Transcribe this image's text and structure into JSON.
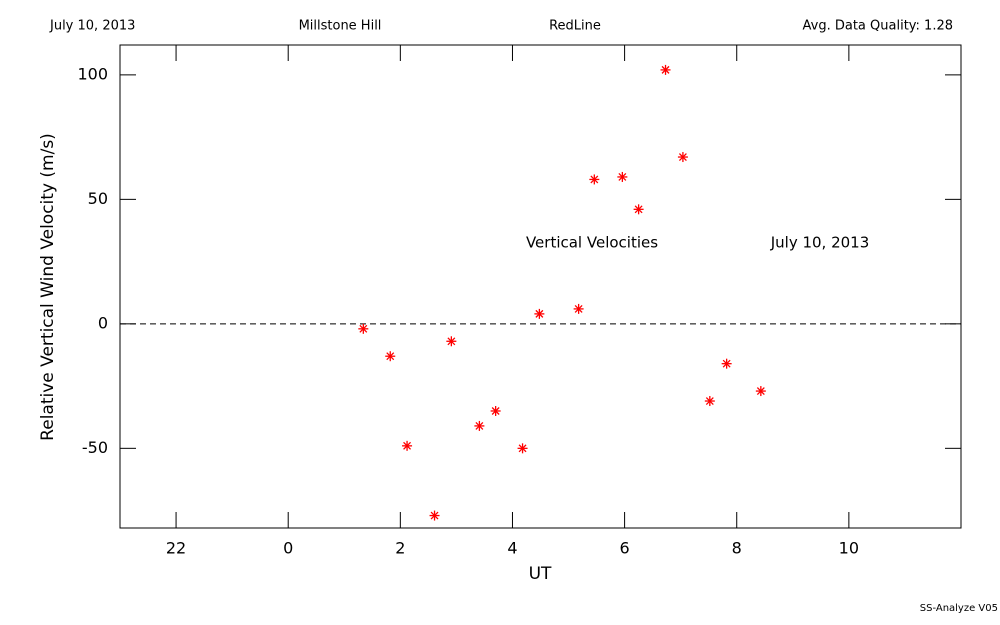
{
  "header": {
    "date": "July 10, 2013",
    "site": "Millstone Hill",
    "instrument": "RedLine",
    "quality": "Avg. Data Quality: 1.28"
  },
  "footer": "SS-Analyze V05",
  "chart_data": {
    "type": "scatter",
    "xlabel": "UT",
    "ylabel": "Relative Vertical Wind Velocity (m/s)",
    "annotations": [
      "Vertical Velocities",
      "July 10, 2013"
    ],
    "xlim": [
      -3,
      12
    ],
    "xticks": [
      {
        "value": -2,
        "label": "22"
      },
      0,
      2,
      4,
      6,
      8,
      10
    ],
    "ylim": [
      -82,
      112
    ],
    "yticks": [
      -50,
      0,
      50,
      100
    ],
    "reference_line": 0,
    "color": "#ff0000",
    "x": [
      1.34,
      1.82,
      2.12,
      2.61,
      2.91,
      3.41,
      3.7,
      4.18,
      4.48,
      5.18,
      5.46,
      5.96,
      6.25,
      6.73,
      7.04,
      7.52,
      7.82,
      8.43
    ],
    "values": [
      -2,
      -13,
      -49,
      -77,
      -7,
      -41,
      -35,
      -50,
      4,
      6,
      58,
      59,
      46,
      102,
      67,
      -31,
      -16,
      -27
    ]
  }
}
